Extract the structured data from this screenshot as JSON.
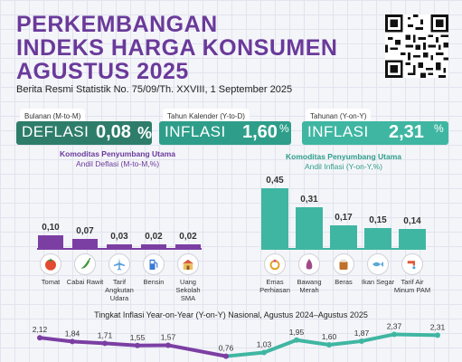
{
  "header": {
    "title_line1": "PERKEMBANGAN",
    "title_line2": "INDEKS HARGA KONSUMEN",
    "title_line3": "AGUSTUS 2025",
    "subtitle": "Berita Resmi Statistik No. 75/09/Th. XXVIII, 1 September 2025"
  },
  "stats": {
    "mtm": {
      "period": "Bulanan (M-to-M)",
      "type": "DEFLASI",
      "value": "0,08",
      "unit": "%",
      "color": "#2e7d6b"
    },
    "ytd": {
      "period": "Tahun Kalender (Y-to-D)",
      "type": "INFLASI",
      "value": "1,60",
      "unit": "%",
      "color": "#2e9e8a"
    },
    "yoy": {
      "period": "Tahunan (Y-on-Y)",
      "type": "INFLASI",
      "value": "2,31",
      "unit": "%",
      "color": "#3fb6a2"
    }
  },
  "deflasi": {
    "title_line1": "Komoditas Penyumbang Utama",
    "title_line2": "Andil Deflasi (M-to-M,%)",
    "items": [
      {
        "value": "0,10",
        "label": "Tomat",
        "icon": "tomato-icon"
      },
      {
        "value": "0,07",
        "label": "Cabai Rawit",
        "icon": "chili-icon"
      },
      {
        "value": "0,03",
        "label": "Tarif Angkutan Udara",
        "icon": "airplane-icon"
      },
      {
        "value": "0,02",
        "label": "Bensin",
        "icon": "fuel-pump-icon"
      },
      {
        "value": "0,02",
        "label": "Uang Sekolah SMA",
        "icon": "school-icon"
      }
    ]
  },
  "inflasi": {
    "title_line1": "Komoditas Penyumbang Utama",
    "title_line2": "Andil Inflasi (Y-on-Y,%)",
    "items": [
      {
        "value": "0,45",
        "label": "Emas Perhiasan",
        "icon": "jewelry-icon"
      },
      {
        "value": "0,31",
        "label": "Bawang Merah",
        "icon": "shallot-icon"
      },
      {
        "value": "0,17",
        "label": "Beras",
        "icon": "rice-icon"
      },
      {
        "value": "0,15",
        "label": "Ikan Segar",
        "icon": "fish-icon"
      },
      {
        "value": "0,14",
        "label": "Tarif Air Minum PAM",
        "icon": "water-tap-icon"
      }
    ]
  },
  "trend": {
    "title": "Tingkat Inflasi Year-on-Year (Y-on-Y) Nasional, Agustus 2024–Agustus 2025",
    "values_left": [
      "2,12",
      "1,84",
      "1,71",
      "1,55",
      "1,57",
      "0,76"
    ],
    "values_right": [
      "1,03",
      "1,95",
      "1,60",
      "1,87",
      "2,37",
      "2,31"
    ]
  },
  "chart_data": [
    {
      "type": "bar",
      "title": "Komoditas Penyumbang Utama Andil Deflasi (M-to-M,%)",
      "categories": [
        "Tomat",
        "Cabai Rawit",
        "Tarif Angkutan Udara",
        "Bensin",
        "Uang Sekolah SMA"
      ],
      "values": [
        0.1,
        0.07,
        0.03,
        0.02,
        0.02
      ],
      "color": "#7b3fa3"
    },
    {
      "type": "bar",
      "title": "Komoditas Penyumbang Utama Andil Inflasi (Y-on-Y,%)",
      "categories": [
        "Emas Perhiasan",
        "Bawang Merah",
        "Beras",
        "Ikan Segar",
        "Tarif Air Minum PAM"
      ],
      "values": [
        0.45,
        0.31,
        0.17,
        0.15,
        0.14
      ],
      "color": "#3fb6a2"
    },
    {
      "type": "line",
      "title": "Tingkat Inflasi Year-on-Year (Y-on-Y) Nasional, Agustus 2024–Agustus 2025",
      "values": [
        2.12,
        1.84,
        1.71,
        1.55,
        1.57,
        0.76,
        1.03,
        1.95,
        1.6,
        1.87,
        2.37,
        2.31
      ],
      "colors": [
        "#7b3fa3",
        "#7b3fa3",
        "#7b3fa3",
        "#7b3fa3",
        "#7b3fa3",
        "#7b3fa3",
        "#3fb6a2",
        "#3fb6a2",
        "#3fb6a2",
        "#3fb6a2",
        "#3fb6a2",
        "#3fb6a2"
      ]
    }
  ]
}
